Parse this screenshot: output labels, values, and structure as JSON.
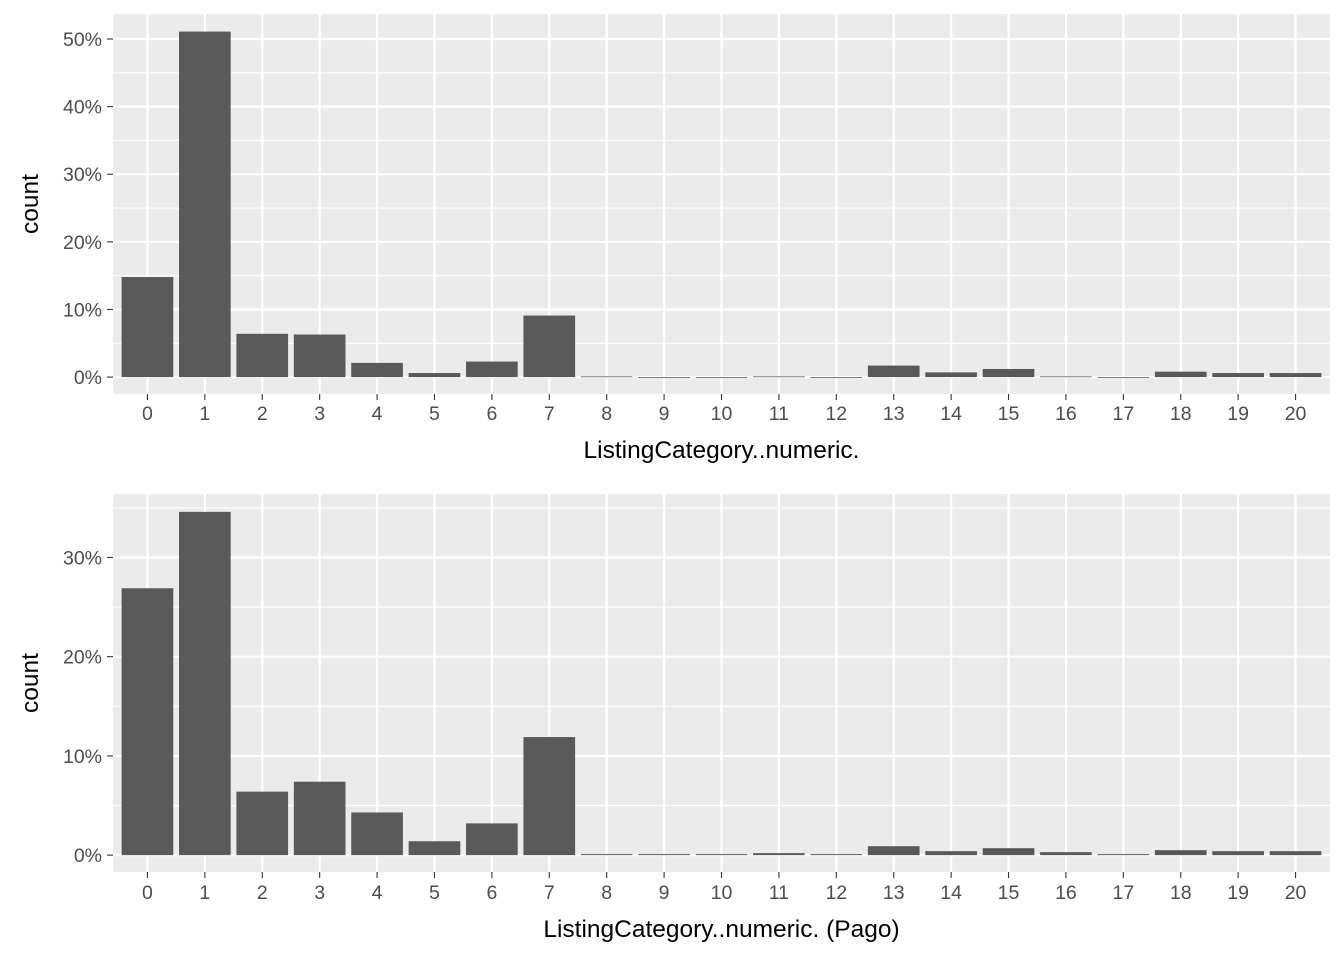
{
  "chart_data": [
    {
      "type": "bar",
      "title": "",
      "xlabel": "ListingCategory..numeric.",
      "ylabel": "count",
      "categories": [
        "0",
        "1",
        "2",
        "3",
        "4",
        "5",
        "6",
        "7",
        "8",
        "9",
        "10",
        "11",
        "12",
        "13",
        "14",
        "15",
        "16",
        "17",
        "18",
        "19",
        "20"
      ],
      "values": [
        14.8,
        51.1,
        6.4,
        6.3,
        2.1,
        0.6,
        2.3,
        9.1,
        0.1,
        0.0,
        0.0,
        0.1,
        0.0,
        1.7,
        0.7,
        1.2,
        0.1,
        0.0,
        0.8,
        0.6,
        0.6
      ],
      "ylim": [
        -2.5,
        53.7
      ],
      "yticks": [
        0,
        10,
        20,
        30,
        40,
        50
      ],
      "ytick_labels": [
        "0%",
        "10%",
        "20%",
        "30%",
        "40%",
        "50%"
      ],
      "grid": true,
      "colors": {
        "bar": "#595959",
        "panel": "#ebebeb",
        "grid": "#ffffff",
        "text": "#4d4d4d",
        "title": "#000000"
      }
    },
    {
      "type": "bar",
      "title": "",
      "xlabel": "ListingCategory..numeric. (Pago)",
      "ylabel": "count",
      "categories": [
        "0",
        "1",
        "2",
        "3",
        "4",
        "5",
        "6",
        "7",
        "8",
        "9",
        "10",
        "11",
        "12",
        "13",
        "14",
        "15",
        "16",
        "17",
        "18",
        "19",
        "20"
      ],
      "values": [
        26.9,
        34.6,
        6.4,
        7.4,
        4.3,
        1.4,
        3.2,
        11.9,
        0.1,
        0.1,
        0.1,
        0.2,
        0.1,
        0.9,
        0.4,
        0.7,
        0.3,
        0.1,
        0.5,
        0.4,
        0.4
      ],
      "ylim": [
        -1.7,
        36.4
      ],
      "yticks": [
        0,
        10,
        20,
        30
      ],
      "ytick_labels": [
        "0%",
        "10%",
        "20%",
        "30%"
      ],
      "grid": true,
      "colors": {
        "bar": "#595959",
        "panel": "#ebebeb",
        "grid": "#ffffff",
        "text": "#4d4d4d",
        "title": "#000000"
      }
    }
  ]
}
